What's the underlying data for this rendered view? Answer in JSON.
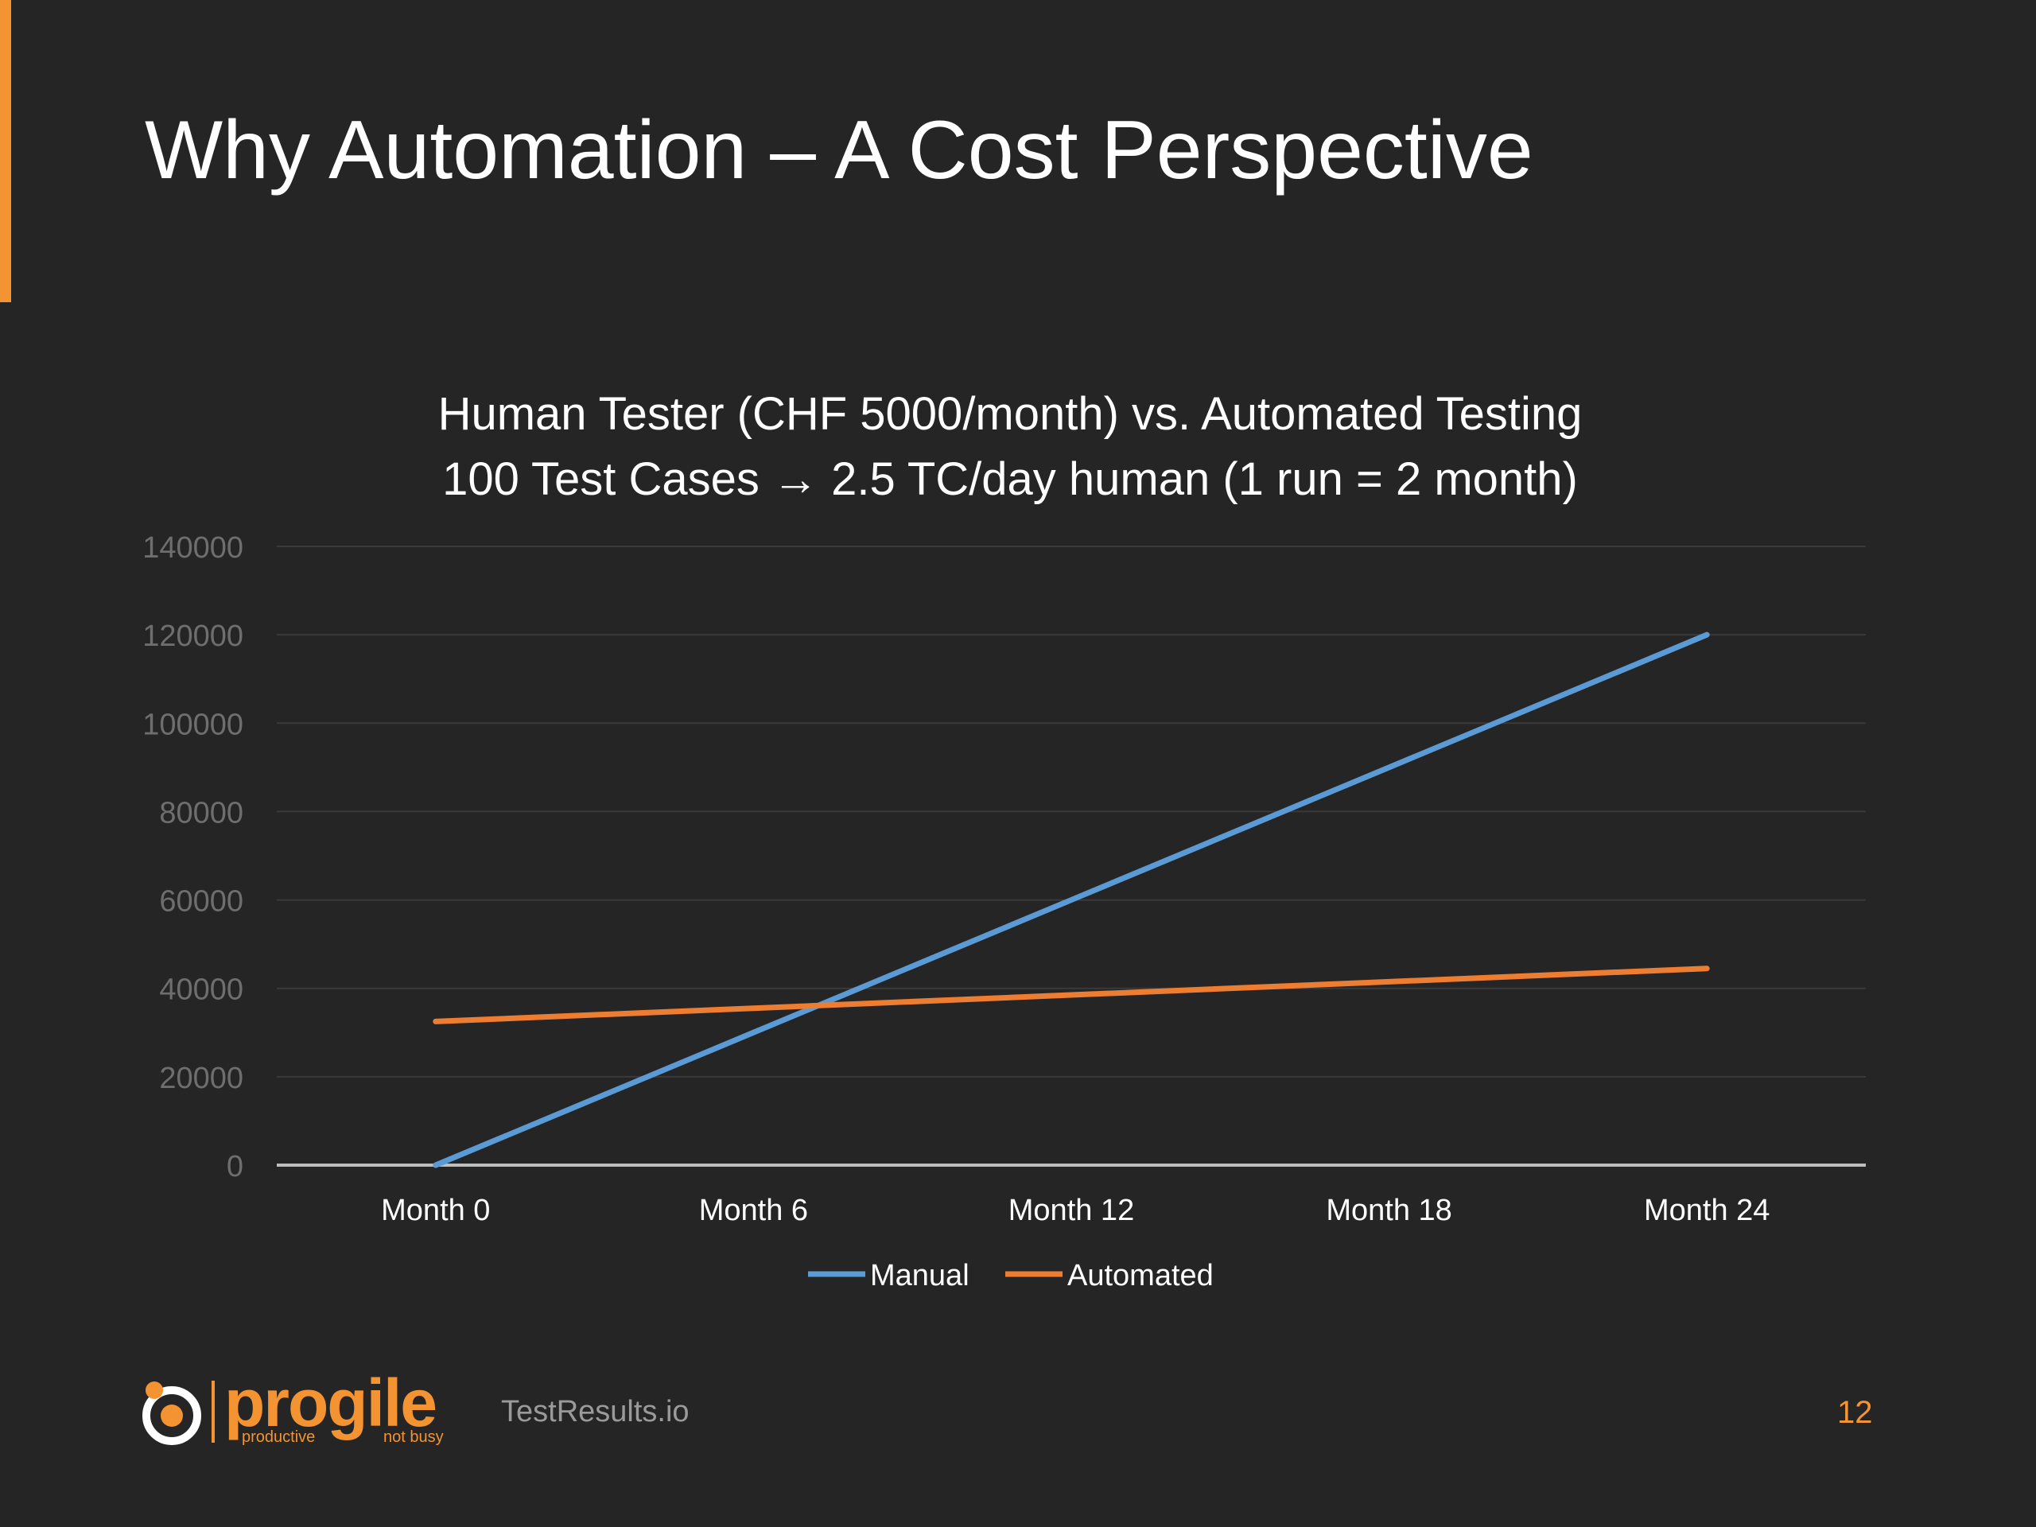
{
  "slide": {
    "title": "Why Automation – A Cost Perspective",
    "accent_color": "#f39332",
    "background_color": "#252525"
  },
  "chart_data": {
    "type": "line",
    "title_lines": [
      "Human Tester (CHF 5000/month) vs. Automated Testing",
      "100 Test Cases → 2.5 TC/day human (1 run = 2 month)"
    ],
    "categories": [
      "Month 0",
      "Month 6",
      "Month 12",
      "Month 18",
      "Month 24"
    ],
    "series": [
      {
        "name": "Manual",
        "color": "#5b9bd5",
        "values": [
          0,
          30000,
          60000,
          90000,
          120000
        ]
      },
      {
        "name": "Automated",
        "color": "#ed7d31",
        "values": [
          32500,
          35500,
          38500,
          41500,
          44500
        ]
      }
    ],
    "y_ticks": [
      "0",
      "20000",
      "40000",
      "60000",
      "80000",
      "100000",
      "120000",
      "140000"
    ],
    "ylim": [
      0,
      140000
    ],
    "y_step": 20000,
    "gridlines": true,
    "legend_position": "bottom"
  },
  "footer": {
    "logo_word": "progile",
    "logo_tagline_left": "productive",
    "logo_tagline_right": "not busy",
    "site": "TestResults.io",
    "page_number": "12"
  }
}
